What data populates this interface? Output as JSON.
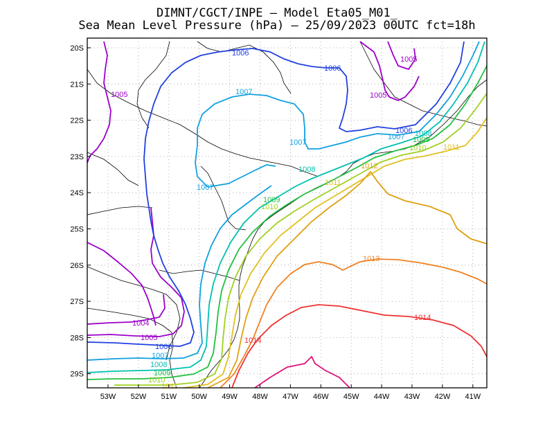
{
  "title_line1": "DIMNT/CGCT/INPE –  Model Eta05_M01_",
  "title_line2": "Sea Mean Level Pressure (hPa) – 25/09/2023 00UTC fct=18h",
  "lon_labels": [
    "53W",
    "52W",
    "51W",
    "50W",
    "49W",
    "48W",
    "47W",
    "46W",
    "45W",
    "44W",
    "43W",
    "42W",
    "41W"
  ],
  "lat_labels": [
    "20S",
    "21S",
    "22S",
    "23S",
    "24S",
    "25S",
    "26S",
    "27S",
    "28S",
    "29S"
  ],
  "isobars": [
    {
      "value": "1004",
      "color": "#9b00c8"
    },
    {
      "value": "1005",
      "color": "#9b00c8"
    },
    {
      "value": "1006",
      "color": "#2040e0"
    },
    {
      "value": "1007",
      "color": "#10a0e0"
    },
    {
      "value": "1008",
      "color": "#00c0b0"
    },
    {
      "value": "1009",
      "color": "#20c040"
    },
    {
      "value": "1010",
      "color": "#a0d020"
    },
    {
      "value": "1011",
      "color": "#e0c020"
    },
    {
      "value": "1012",
      "color": "#e0a010"
    },
    {
      "value": "1013",
      "color": "#f08020"
    },
    {
      "value": "1014",
      "color": "#f03030"
    },
    {
      "value": "1015",
      "color": "#e0107a"
    }
  ],
  "contour_labels": [
    {
      "text": "1005",
      "color": "#9b00c8"
    },
    {
      "text": "1005",
      "color": "#9b00c8"
    },
    {
      "text": "1005",
      "color": "#9b00c8"
    },
    {
      "text": "1004",
      "color": "#9b00c8"
    },
    {
      "text": "1005",
      "color": "#9b00c8"
    },
    {
      "text": "1006",
      "color": "#2040e0"
    },
    {
      "text": "1006",
      "color": "#2040e0"
    },
    {
      "text": "1006",
      "color": "#2040e0"
    },
    {
      "text": "1006",
      "color": "#2040e0"
    },
    {
      "text": "1007",
      "color": "#10a0e0"
    },
    {
      "text": "1007",
      "color": "#10a0e0"
    },
    {
      "text": "1007",
      "color": "#10a0e0"
    },
    {
      "text": "1007",
      "color": "#10a0e0"
    },
    {
      "text": "1007",
      "color": "#10a0e0"
    },
    {
      "text": "1008",
      "color": "#00c0b0"
    },
    {
      "text": "1008",
      "color": "#00c0b0"
    },
    {
      "text": "1008",
      "color": "#00c0b0"
    },
    {
      "text": "1009",
      "color": "#20c040"
    },
    {
      "text": "1009",
      "color": "#20c040"
    },
    {
      "text": "1009",
      "color": "#20c040"
    },
    {
      "text": "1010",
      "color": "#a0d020"
    },
    {
      "text": "1010",
      "color": "#a0d020"
    },
    {
      "text": "1010",
      "color": "#a0d020"
    },
    {
      "text": "1011",
      "color": "#e0c020"
    },
    {
      "text": "1011",
      "color": "#e0c020"
    },
    {
      "text": "1011",
      "color": "#e0c020"
    },
    {
      "text": "1012",
      "color": "#e0a010"
    },
    {
      "text": "1013",
      "color": "#f08020"
    },
    {
      "text": "1014",
      "color": "#f03030"
    },
    {
      "text": "1014",
      "color": "#f03030"
    }
  ]
}
